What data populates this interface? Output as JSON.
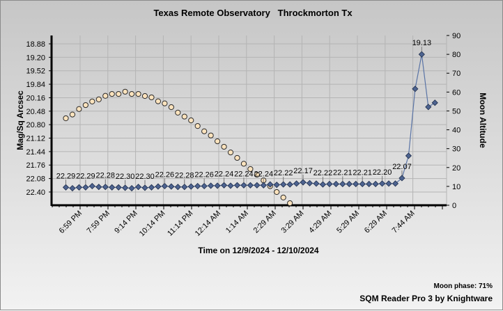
{
  "chart_data": {
    "type": "line",
    "title": "Texas Remote Observatory   Throckmorton Tx",
    "xlabel": "Time on 12/9/2024 - 12/10/2024",
    "ylabel": "Mag/Sq Arcsec",
    "y2label": "Moon Altitude",
    "y_ticks": [
      "18.88",
      "19.20",
      "19.52",
      "19.84",
      "20.16",
      "20.48",
      "20.80",
      "21.12",
      "21.44",
      "21.76",
      "22.08",
      "22.40"
    ],
    "y_reversed": true,
    "y2_ticks": [
      "0",
      "10",
      "20",
      "30",
      "40",
      "50",
      "60",
      "70",
      "80",
      "90"
    ],
    "y2lim": [
      0,
      90
    ],
    "x_tick_labels": [
      "6:59 PM",
      "7:59 PM",
      "9:14 PM",
      "10:14 PM",
      "11:14 PM",
      "12:14 AM",
      "1:14 AM",
      "2:29 AM",
      "3:29 AM",
      "4:29 AM",
      "5:29 AM",
      "6:29 AM",
      "7:44 AM"
    ],
    "grid": true,
    "series": [
      {
        "name": "SQM reading",
        "color": "#4d6390",
        "marker": "diamond",
        "values": [
          22.29,
          22.31,
          22.29,
          22.29,
          22.26,
          22.28,
          22.28,
          22.29,
          22.29,
          22.3,
          22.31,
          22.28,
          22.3,
          22.29,
          22.27,
          22.26,
          22.27,
          22.28,
          22.28,
          22.27,
          22.26,
          22.26,
          22.25,
          22.25,
          22.24,
          22.25,
          22.24,
          22.24,
          22.24,
          22.24,
          22.24,
          22.22,
          22.23,
          22.22,
          22.22,
          22.2,
          22.17,
          22.19,
          22.2,
          22.22,
          22.21,
          22.21,
          22.21,
          22.21,
          22.21,
          22.21,
          22.21,
          22.21,
          22.2,
          22.2,
          22.2,
          22.07,
          21.54,
          19.95,
          19.13,
          20.38,
          20.28
        ],
        "data_labels": [
          {
            "index": 0,
            "text": "22.29"
          },
          {
            "index": 3,
            "text": "22.29"
          },
          {
            "index": 6,
            "text": "22.28"
          },
          {
            "index": 9,
            "text": "22.30"
          },
          {
            "index": 12,
            "text": "22.30"
          },
          {
            "index": 15,
            "text": "22.26"
          },
          {
            "index": 18,
            "text": "22.28"
          },
          {
            "index": 21,
            "text": "22.26"
          },
          {
            "index": 24,
            "text": "22.24"
          },
          {
            "index": 27,
            "text": "22.24"
          },
          {
            "index": 30,
            "text": "22.24"
          },
          {
            "index": 33,
            "text": "22.22"
          },
          {
            "index": 36,
            "text": "22.17"
          },
          {
            "index": 39,
            "text": "22.22"
          },
          {
            "index": 42,
            "text": "22.21"
          },
          {
            "index": 45,
            "text": "22.21"
          },
          {
            "index": 48,
            "text": "22.20"
          },
          {
            "index": 51,
            "text": "22.07"
          },
          {
            "index": 54,
            "text": "19.13"
          }
        ]
      },
      {
        "name": "Moon altitude",
        "axis": "right",
        "color": "#fde3bd",
        "marker": "circle",
        "values": [
          46.1,
          48.1,
          51.0,
          53.1,
          55.0,
          56.1,
          58.0,
          59.0,
          59.0,
          60.2,
          59.0,
          59.0,
          57.9,
          57.2,
          55.1,
          54.0,
          52.0,
          49.1,
          47.0,
          45.0,
          42.0,
          39.2,
          37.0,
          33.9,
          31.0,
          28.0,
          25.1,
          22.0,
          19.2,
          16.2,
          13.2,
          10.1,
          7.0,
          4.1,
          1.1
        ]
      }
    ]
  },
  "footer": {
    "moon_phase": "Moon phase: 71%",
    "credit": "SQM Reader Pro 3 by Knightware"
  }
}
